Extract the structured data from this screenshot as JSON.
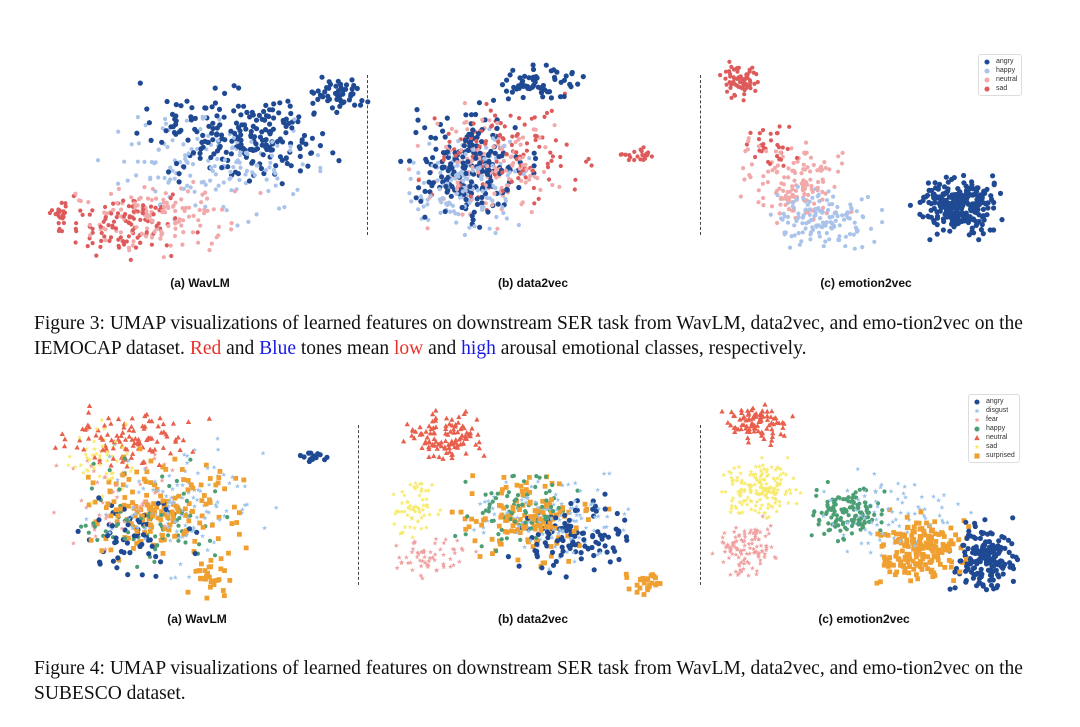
{
  "figure3": {
    "panels": [
      {
        "title": "(a) WavLM"
      },
      {
        "title": "(b) data2vec"
      },
      {
        "title": "(c) emotion2vec"
      }
    ],
    "caption_prefix": "Figure 3: UMAP visualizations of learned features on downstream SER task from WavLM, data2vec, and emo-tion2vec on the IEMOCAP dataset. ",
    "red": "Red",
    "and1": " and ",
    "blue": "Blue",
    "mid": " tones mean ",
    "low": "low",
    "and2": " and ",
    "high": "high",
    "suffix": " arousal emotional classes, respectively.",
    "legend": [
      {
        "label": "angry",
        "color": "#1f4a93",
        "marker": "circle"
      },
      {
        "label": "happy",
        "color": "#a9c3ea",
        "marker": "circle"
      },
      {
        "label": "neutral",
        "color": "#f1a9aa",
        "marker": "circle"
      },
      {
        "label": "sad",
        "color": "#de5b5b",
        "marker": "circle"
      }
    ]
  },
  "figure4": {
    "panels": [
      {
        "title": "(a) WavLM"
      },
      {
        "title": "(b) data2vec"
      },
      {
        "title": "(c) emotion2vec"
      }
    ],
    "caption": "Figure 4: UMAP visualizations of learned features on downstream SER task from WavLM, data2vec, and emo-tion2vec on the SUBESCO dataset.",
    "legend": [
      {
        "label": "angry",
        "color": "#1f4a93",
        "marker": "circle"
      },
      {
        "label": "disgust",
        "color": "#9cc3ea",
        "marker": "star"
      },
      {
        "label": "fear",
        "color": "#f0a0a0",
        "marker": "star"
      },
      {
        "label": "happy",
        "color": "#4c9e74",
        "marker": "circle"
      },
      {
        "label": "neutral",
        "color": "#e85f4c",
        "marker": "triangle"
      },
      {
        "label": "sad",
        "color": "#f7ea6a",
        "marker": "star"
      },
      {
        "label": "surprised",
        "color": "#f0a030",
        "marker": "square"
      }
    ]
  },
  "chart_data": [
    {
      "type": "scatter",
      "title": "(a) WavLM",
      "dataset": "IEMOCAP",
      "series": [
        {
          "name": "angry"
        },
        {
          "name": "happy"
        },
        {
          "name": "neutral"
        },
        {
          "name": "sad"
        }
      ],
      "legend": "top-right"
    },
    {
      "type": "scatter",
      "title": "(b) data2vec",
      "dataset": "IEMOCAP",
      "series": [
        {
          "name": "angry"
        },
        {
          "name": "happy"
        },
        {
          "name": "neutral"
        },
        {
          "name": "sad"
        }
      ]
    },
    {
      "type": "scatter",
      "title": "(c) emotion2vec",
      "dataset": "IEMOCAP",
      "series": [
        {
          "name": "angry"
        },
        {
          "name": "happy"
        },
        {
          "name": "neutral"
        },
        {
          "name": "sad"
        }
      ],
      "legend": "top-right"
    },
    {
      "type": "scatter",
      "title": "(a) WavLM",
      "dataset": "SUBESCO",
      "series": [
        {
          "name": "angry"
        },
        {
          "name": "disgust"
        },
        {
          "name": "fear"
        },
        {
          "name": "happy"
        },
        {
          "name": "neutral"
        },
        {
          "name": "sad"
        },
        {
          "name": "surprised"
        }
      ]
    },
    {
      "type": "scatter",
      "title": "(b) data2vec",
      "dataset": "SUBESCO",
      "series": [
        {
          "name": "angry"
        },
        {
          "name": "disgust"
        },
        {
          "name": "fear"
        },
        {
          "name": "happy"
        },
        {
          "name": "neutral"
        },
        {
          "name": "sad"
        },
        {
          "name": "surprised"
        }
      ]
    },
    {
      "type": "scatter",
      "title": "(c) emotion2vec",
      "dataset": "SUBESCO",
      "series": [
        {
          "name": "angry"
        },
        {
          "name": "disgust"
        },
        {
          "name": "fear"
        },
        {
          "name": "happy"
        },
        {
          "name": "neutral"
        },
        {
          "name": "sad"
        },
        {
          "name": "surprised"
        }
      ],
      "legend": "top-right"
    }
  ]
}
